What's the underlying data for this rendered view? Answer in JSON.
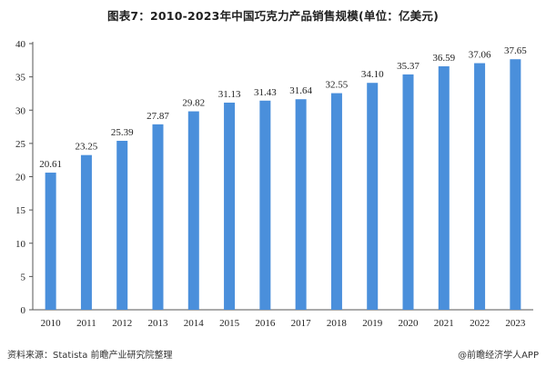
{
  "header": {
    "title": "图表7：2010-2023年中国巧克力产品销售规模(单位：亿美元)"
  },
  "footer": {
    "source": "资料来源：Statista 前瞻产业研究院整理",
    "credit": "@前瞻经济学人APP"
  },
  "chart_data": {
    "type": "bar",
    "title": "图表7：2010-2023年中国巧克力产品销售规模(单位：亿美元)",
    "categories": [
      "2010",
      "2011",
      "2012",
      "2013",
      "2014",
      "2015",
      "2016",
      "2017",
      "2018",
      "2019",
      "2020",
      "2021",
      "2022",
      "2023"
    ],
    "values": [
      20.61,
      23.25,
      25.39,
      27.87,
      29.82,
      31.13,
      31.43,
      31.64,
      32.55,
      34.1,
      35.37,
      36.59,
      37.06,
      37.65
    ],
    "value_labels": [
      "20.61",
      "23.25",
      "25.39",
      "27.87",
      "29.82",
      "31.13",
      "31.43",
      "31.64",
      "32.55",
      "34.10",
      "35.37",
      "36.59",
      "37.06",
      "37.65"
    ],
    "ylim": [
      0,
      40
    ],
    "yticks": [
      0,
      5,
      10,
      15,
      20,
      25,
      30,
      35,
      40
    ],
    "grid": false,
    "legend": "none",
    "bar_color": "#4a8fdb"
  }
}
